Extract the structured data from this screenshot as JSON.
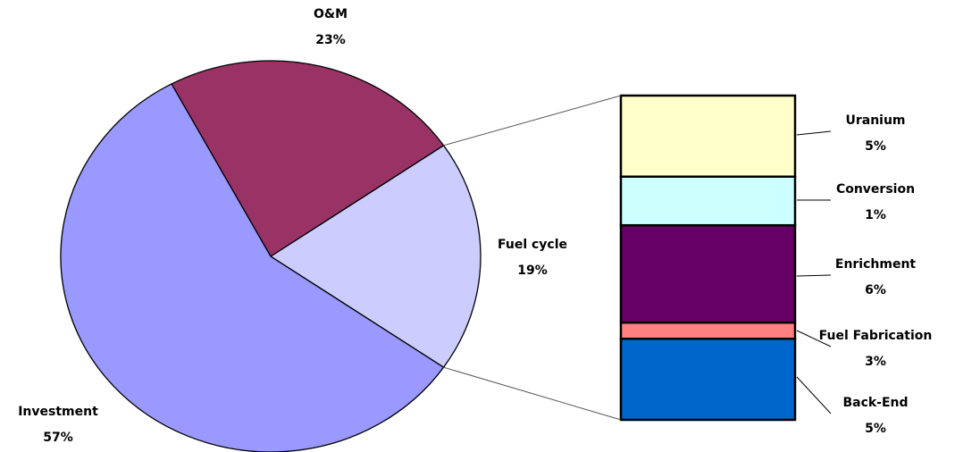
{
  "chart_data": [
    {
      "type": "pie",
      "categories": [
        "Fuel cycle",
        "O&M",
        "Investment"
      ],
      "values": [
        19,
        23,
        57
      ],
      "value_labels": [
        "19%",
        "23%",
        "57%"
      ],
      "colors": [
        "#ccccff",
        "#993366",
        "#9999ff"
      ]
    },
    {
      "type": "stacked-bar",
      "categories": [
        "Uranium",
        "Conversion",
        "Enrichment",
        "Fuel Fabrication",
        "Back-End"
      ],
      "values": [
        5,
        1,
        6,
        3,
        5
      ],
      "value_labels": [
        "5%",
        "1%",
        "6%",
        "3%",
        "5%"
      ],
      "colors": [
        "#0066cc",
        "#ff8080",
        "#660066",
        "#ccffff",
        "#ffffcc"
      ]
    }
  ]
}
